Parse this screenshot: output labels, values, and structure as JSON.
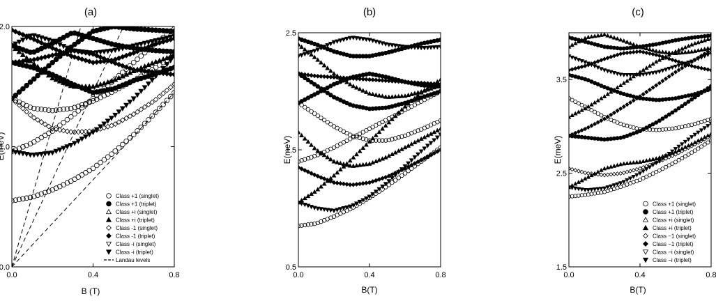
{
  "figure": {
    "panels": [
      "(a)",
      "(b)",
      "(c)"
    ]
  },
  "chart_data": [
    {
      "type": "scatter",
      "title": "(a)",
      "xlabel": "B (T)",
      "ylabel": "E(meV)",
      "xlim": [
        0.0,
        0.8
      ],
      "ylim": [
        0.0,
        2.0
      ],
      "xticks": [
        "0.0",
        "0.4",
        "0.8"
      ],
      "yticks": [
        "0.0",
        "1.0",
        "2.0"
      ],
      "grid": false,
      "legend_position": "bottom-right",
      "legend": [
        {
          "label": "Class +1 (singlet)",
          "marker": "circle-open"
        },
        {
          "label": "Class +1 (triplet)",
          "marker": "circle-filled"
        },
        {
          "label": "Class +i (singlet)",
          "marker": "triangle-up-open"
        },
        {
          "label": "Class +i (triplet)",
          "marker": "triangle-up-filled"
        },
        {
          "label": "Class -1 (singlet)",
          "marker": "diamond-open"
        },
        {
          "label": "Class -1 (triplet)",
          "marker": "diamond-filled"
        },
        {
          "label": "Class -i (singlet)",
          "marker": "triangle-down-open"
        },
        {
          "label": "Class -i (triplet)",
          "marker": "triangle-down-filled"
        },
        {
          "label": "Landau levels",
          "marker": "dashed-line"
        }
      ],
      "landau_levels": [
        {
          "x": [
            0.0,
            0.34
          ],
          "y": [
            0.0,
            2.0
          ]
        },
        {
          "x": [
            0.0,
            0.55
          ],
          "y": [
            0.0,
            2.0
          ]
        },
        {
          "x": [
            0.0,
            0.8
          ],
          "y": [
            0.0,
            1.45
          ]
        }
      ],
      "series": [
        {
          "marker": "circle-open",
          "x": [
            0.0,
            0.1,
            0.2,
            0.3,
            0.4,
            0.5,
            0.6,
            0.7,
            0.8
          ],
          "y": [
            0.55,
            0.58,
            0.64,
            0.72,
            0.82,
            0.95,
            1.1,
            1.27,
            1.45
          ]
        },
        {
          "marker": "triangle-down-filled",
          "x": [
            0.0,
            0.1,
            0.2,
            0.3,
            0.4,
            0.5,
            0.6,
            0.7,
            0.8
          ],
          "y": [
            0.96,
            0.93,
            0.95,
            1.02,
            1.12,
            1.25,
            1.4,
            1.57,
            1.75
          ]
        },
        {
          "marker": "circle-open",
          "x": [
            0.0,
            0.1,
            0.2,
            0.3,
            0.4,
            0.5,
            0.6,
            0.7,
            0.8
          ],
          "y": [
            0.96,
            1.03,
            1.13,
            1.26,
            1.4,
            1.55,
            1.7,
            1.85,
            1.98
          ]
        },
        {
          "marker": "diamond-open",
          "x": [
            0.0,
            0.1,
            0.2,
            0.3,
            0.4,
            0.5,
            0.6,
            0.7,
            0.8
          ],
          "y": [
            1.4,
            1.25,
            1.15,
            1.12,
            1.13,
            1.18,
            1.27,
            1.38,
            1.52
          ]
        },
        {
          "marker": "circle-open",
          "x": [
            0.0,
            0.1,
            0.2,
            0.3,
            0.4,
            0.5,
            0.6,
            0.7,
            0.8
          ],
          "y": [
            1.4,
            1.32,
            1.3,
            1.32,
            1.38,
            1.46,
            1.55,
            1.65,
            1.76
          ]
        },
        {
          "marker": "circle-filled",
          "x": [
            0.0,
            0.1,
            0.2,
            0.3,
            0.4,
            0.5,
            0.6,
            0.7,
            0.8
          ],
          "y": [
            1.4,
            1.55,
            1.7,
            1.84,
            1.96,
            2.0,
            1.98,
            1.97,
            1.96
          ]
        },
        {
          "marker": "circle-filled",
          "x": [
            0.0,
            0.1,
            0.2,
            0.3,
            0.4,
            0.5,
            0.6,
            0.7,
            0.8
          ],
          "y": [
            1.7,
            1.66,
            1.6,
            1.52,
            1.45,
            1.48,
            1.55,
            1.6,
            1.66
          ]
        },
        {
          "marker": "diamond-filled",
          "x": [
            0.0,
            0.1,
            0.2,
            0.3,
            0.4,
            0.5,
            0.6,
            0.7,
            0.8
          ],
          "y": [
            1.7,
            1.72,
            1.76,
            1.8,
            1.77,
            1.7,
            1.64,
            1.62,
            1.6
          ]
        },
        {
          "marker": "triangle-up-filled",
          "x": [
            0.0,
            0.1,
            0.2,
            0.3,
            0.4,
            0.5,
            0.6,
            0.7,
            0.8
          ],
          "y": [
            1.84,
            1.7,
            1.57,
            1.5,
            1.5,
            1.55,
            1.63,
            1.7,
            1.76
          ]
        },
        {
          "marker": "triangle-down-filled",
          "x": [
            0.0,
            0.1,
            0.2,
            0.3,
            0.4,
            0.5,
            0.6,
            0.7,
            0.8
          ],
          "y": [
            1.84,
            1.93,
            1.88,
            1.8,
            1.78,
            1.8,
            1.84,
            1.88,
            1.92
          ]
        },
        {
          "marker": "circle-filled",
          "x": [
            0.0,
            0.1,
            0.2,
            0.3,
            0.4,
            0.5,
            0.6,
            0.7,
            0.8
          ],
          "y": [
            1.84,
            1.78,
            1.86,
            1.95,
            1.9,
            1.85,
            1.82,
            1.8,
            1.79
          ]
        },
        {
          "marker": "diamond-filled",
          "x": [
            0.0,
            0.1,
            0.2,
            0.3,
            0.4,
            0.5,
            0.6,
            0.7,
            0.8
          ],
          "y": [
            1.97,
            1.9,
            1.82,
            1.75,
            1.7,
            1.72,
            1.78,
            1.85,
            1.9
          ]
        }
      ]
    },
    {
      "type": "scatter",
      "title": "(b)",
      "xlabel": "B(T)",
      "ylabel": "E(meV)",
      "xlim": [
        0.0,
        0.8
      ],
      "ylim": [
        0.5,
        2.5
      ],
      "xticks": [
        "0.0",
        "0.4",
        "0.8"
      ],
      "yticks": [
        "0.5",
        "1.5",
        "2.5"
      ],
      "grid": false,
      "series": [
        {
          "marker": "circle-open",
          "x": [
            0.0,
            0.1,
            0.2,
            0.3,
            0.4,
            0.5,
            0.6,
            0.7,
            0.8
          ],
          "y": [
            0.85,
            0.87,
            0.93,
            1.0,
            1.09,
            1.19,
            1.3,
            1.41,
            1.52
          ]
        },
        {
          "marker": "triangle-down-filled",
          "x": [
            0.0,
            0.1,
            0.2,
            0.3,
            0.4,
            0.5,
            0.6,
            0.7,
            0.8
          ],
          "y": [
            1.05,
            1.0,
            0.98,
            1.02,
            1.1,
            1.22,
            1.36,
            1.5,
            1.63
          ]
        },
        {
          "marker": "triangle-up-filled",
          "x": [
            0.0,
            0.1,
            0.2,
            0.3,
            0.4,
            0.5,
            0.6,
            0.7,
            0.8
          ],
          "y": [
            1.05,
            1.15,
            1.28,
            1.42,
            1.57,
            1.72,
            1.87,
            2.0,
            2.1
          ]
        },
        {
          "marker": "diamond-filled",
          "x": [
            0.0,
            0.1,
            0.2,
            0.3,
            0.4,
            0.5,
            0.6,
            0.7,
            0.8
          ],
          "y": [
            1.35,
            1.28,
            1.22,
            1.2,
            1.22,
            1.27,
            1.34,
            1.42,
            1.5
          ]
        },
        {
          "marker": "circle-open",
          "x": [
            0.0,
            0.1,
            0.2,
            0.3,
            0.4,
            0.5,
            0.6,
            0.7,
            0.8
          ],
          "y": [
            1.4,
            1.45,
            1.52,
            1.6,
            1.68,
            1.76,
            1.84,
            1.92,
            2.0
          ]
        },
        {
          "marker": "triangle-up-filled",
          "x": [
            0.0,
            0.1,
            0.2,
            0.3,
            0.4,
            0.5,
            0.6,
            0.7,
            0.8
          ],
          "y": [
            1.65,
            1.5,
            1.4,
            1.36,
            1.38,
            1.44,
            1.52,
            1.6,
            1.68
          ]
        },
        {
          "marker": "circle-open",
          "x": [
            0.0,
            0.1,
            0.2,
            0.3,
            0.4,
            0.5,
            0.6,
            0.7,
            0.8
          ],
          "y": [
            1.9,
            1.8,
            1.7,
            1.62,
            1.58,
            1.58,
            1.62,
            1.68,
            1.75
          ]
        },
        {
          "marker": "circle-filled",
          "x": [
            0.0,
            0.1,
            0.2,
            0.3,
            0.4,
            0.5,
            0.6,
            0.7,
            0.8
          ],
          "y": [
            1.9,
            1.98,
            2.06,
            2.12,
            2.15,
            2.12,
            2.08,
            2.05,
            2.04
          ]
        },
        {
          "marker": "diamond-filled",
          "x": [
            0.0,
            0.1,
            0.2,
            0.3,
            0.4,
            0.5,
            0.6,
            0.7,
            0.8
          ],
          "y": [
            2.15,
            2.13,
            2.12,
            2.11,
            2.1,
            2.09,
            2.08,
            2.07,
            2.06
          ]
        },
        {
          "marker": "circle-filled",
          "x": [
            0.0,
            0.1,
            0.2,
            0.3,
            0.4,
            0.5,
            0.6,
            0.7,
            0.8
          ],
          "y": [
            2.15,
            2.05,
            1.95,
            1.88,
            1.85,
            1.86,
            1.9,
            1.95,
            2.0
          ]
        },
        {
          "marker": "triangle-down-filled",
          "x": [
            0.0,
            0.1,
            0.2,
            0.3,
            0.4,
            0.5,
            0.6,
            0.7,
            0.8
          ],
          "y": [
            2.3,
            2.35,
            2.42,
            2.46,
            2.44,
            2.4,
            2.38,
            2.37,
            2.38
          ]
        },
        {
          "marker": "circle-filled",
          "x": [
            0.0,
            0.1,
            0.2,
            0.3,
            0.4,
            0.5,
            0.6,
            0.7,
            0.8
          ],
          "y": [
            2.45,
            2.4,
            2.34,
            2.3,
            2.3,
            2.33,
            2.37,
            2.41,
            2.44
          ]
        },
        {
          "marker": "triangle-up-filled",
          "x": [
            0.0,
            0.1,
            0.2,
            0.3,
            0.4,
            0.5,
            0.6,
            0.7,
            0.8
          ],
          "y": [
            2.4,
            2.28,
            2.15,
            2.05,
            1.98,
            1.95,
            1.96,
            2.0,
            2.05
          ]
        }
      ]
    },
    {
      "type": "scatter",
      "title": "(c)",
      "xlabel": "B(T)",
      "ylabel": "E(meV)",
      "xlim": [
        0.0,
        0.8
      ],
      "ylim": [
        1.5,
        4.0
      ],
      "xticks": [
        "0.0",
        "0.4",
        "0.8"
      ],
      "yticks": [
        "1.5",
        "2.5",
        "3.5"
      ],
      "grid": false,
      "legend_position": "bottom-right",
      "legend": [
        {
          "label": "Class +1 (singlet)",
          "marker": "circle-open"
        },
        {
          "label": "Class +1 (triplet)",
          "marker": "circle-filled"
        },
        {
          "label": "Class +i (singlet)",
          "marker": "triangle-up-open"
        },
        {
          "label": "Class +i (triplet)",
          "marker": "triangle-up-filled"
        },
        {
          "label": "Class −1 (singlet)",
          "marker": "diamond-open"
        },
        {
          "label": "Class −1 (triplet)",
          "marker": "diamond-filled"
        },
        {
          "label": "Class −i (singlet)",
          "marker": "triangle-down-open"
        },
        {
          "label": "Class −i (triplet)",
          "marker": "triangle-down-filled"
        }
      ],
      "series": [
        {
          "marker": "circle-open",
          "x": [
            0.0,
            0.1,
            0.2,
            0.3,
            0.4,
            0.5,
            0.6,
            0.7,
            0.8
          ],
          "y": [
            2.25,
            2.27,
            2.3,
            2.36,
            2.43,
            2.52,
            2.62,
            2.73,
            2.85
          ]
        },
        {
          "marker": "triangle-down-filled",
          "x": [
            0.0,
            0.1,
            0.2,
            0.3,
            0.4,
            0.5,
            0.6,
            0.7,
            0.8
          ],
          "y": [
            2.35,
            2.32,
            2.34,
            2.4,
            2.5,
            2.62,
            2.76,
            2.9,
            3.03
          ]
        },
        {
          "marker": "diamond-open",
          "x": [
            0.0,
            0.1,
            0.2,
            0.3,
            0.4,
            0.5,
            0.6,
            0.7,
            0.8
          ],
          "y": [
            2.55,
            2.5,
            2.48,
            2.5,
            2.55,
            2.62,
            2.7,
            2.8,
            2.9
          ]
        },
        {
          "marker": "triangle-up-filled",
          "x": [
            0.0,
            0.1,
            0.2,
            0.3,
            0.4,
            0.5,
            0.6,
            0.7,
            0.8
          ],
          "y": [
            2.35,
            2.45,
            2.55,
            2.6,
            2.62,
            2.66,
            2.73,
            2.82,
            2.92
          ]
        },
        {
          "marker": "circle-filled",
          "x": [
            0.0,
            0.1,
            0.2,
            0.3,
            0.4,
            0.5,
            0.6,
            0.7,
            0.8
          ],
          "y": [
            2.9,
            2.88,
            2.86,
            2.88,
            2.95,
            3.05,
            3.17,
            3.3,
            3.43
          ]
        },
        {
          "marker": "diamond-filled",
          "x": [
            0.0,
            0.1,
            0.2,
            0.3,
            0.4,
            0.5,
            0.6,
            0.7,
            0.8
          ],
          "y": [
            2.9,
            2.98,
            3.08,
            3.2,
            3.32,
            3.45,
            3.58,
            3.7,
            3.82
          ]
        },
        {
          "marker": "circle-open",
          "x": [
            0.0,
            0.1,
            0.2,
            0.3,
            0.4,
            0.5,
            0.6,
            0.7,
            0.8
          ],
          "y": [
            3.3,
            3.2,
            3.1,
            3.02,
            2.97,
            2.96,
            2.98,
            3.02,
            3.08
          ]
        },
        {
          "marker": "triangle-up-filled",
          "x": [
            0.0,
            0.1,
            0.2,
            0.3,
            0.4,
            0.5,
            0.6,
            0.7,
            0.8
          ],
          "y": [
            3.1,
            3.2,
            3.32,
            3.45,
            3.58,
            3.7,
            3.8,
            3.88,
            3.94
          ]
        },
        {
          "marker": "circle-filled",
          "x": [
            0.0,
            0.1,
            0.2,
            0.3,
            0.4,
            0.5,
            0.6,
            0.7,
            0.8
          ],
          "y": [
            3.55,
            3.5,
            3.42,
            3.35,
            3.3,
            3.28,
            3.3,
            3.34,
            3.4
          ]
        },
        {
          "marker": "diamond-filled",
          "x": [
            0.0,
            0.1,
            0.2,
            0.3,
            0.4,
            0.5,
            0.6,
            0.7,
            0.8
          ],
          "y": [
            3.6,
            3.65,
            3.72,
            3.78,
            3.8,
            3.76,
            3.7,
            3.64,
            3.6
          ]
        },
        {
          "marker": "triangle-down-filled",
          "x": [
            0.0,
            0.1,
            0.2,
            0.3,
            0.4,
            0.5,
            0.6,
            0.7,
            0.8
          ],
          "y": [
            3.75,
            3.68,
            3.6,
            3.55,
            3.55,
            3.58,
            3.64,
            3.7,
            3.78
          ]
        },
        {
          "marker": "circle-filled",
          "x": [
            0.0,
            0.1,
            0.2,
            0.3,
            0.4,
            0.5,
            0.6,
            0.7,
            0.8
          ],
          "y": [
            3.95,
            3.9,
            3.85,
            3.83,
            3.85,
            3.88,
            3.92,
            3.95,
            3.97
          ]
        },
        {
          "marker": "triangle-up-filled",
          "x": [
            0.0,
            0.1,
            0.2,
            0.3,
            0.4,
            0.5,
            0.6,
            0.7,
            0.8
          ],
          "y": [
            3.85,
            3.95,
            3.98,
            3.92,
            3.85,
            3.8,
            3.78,
            3.8,
            3.84
          ]
        }
      ]
    }
  ]
}
